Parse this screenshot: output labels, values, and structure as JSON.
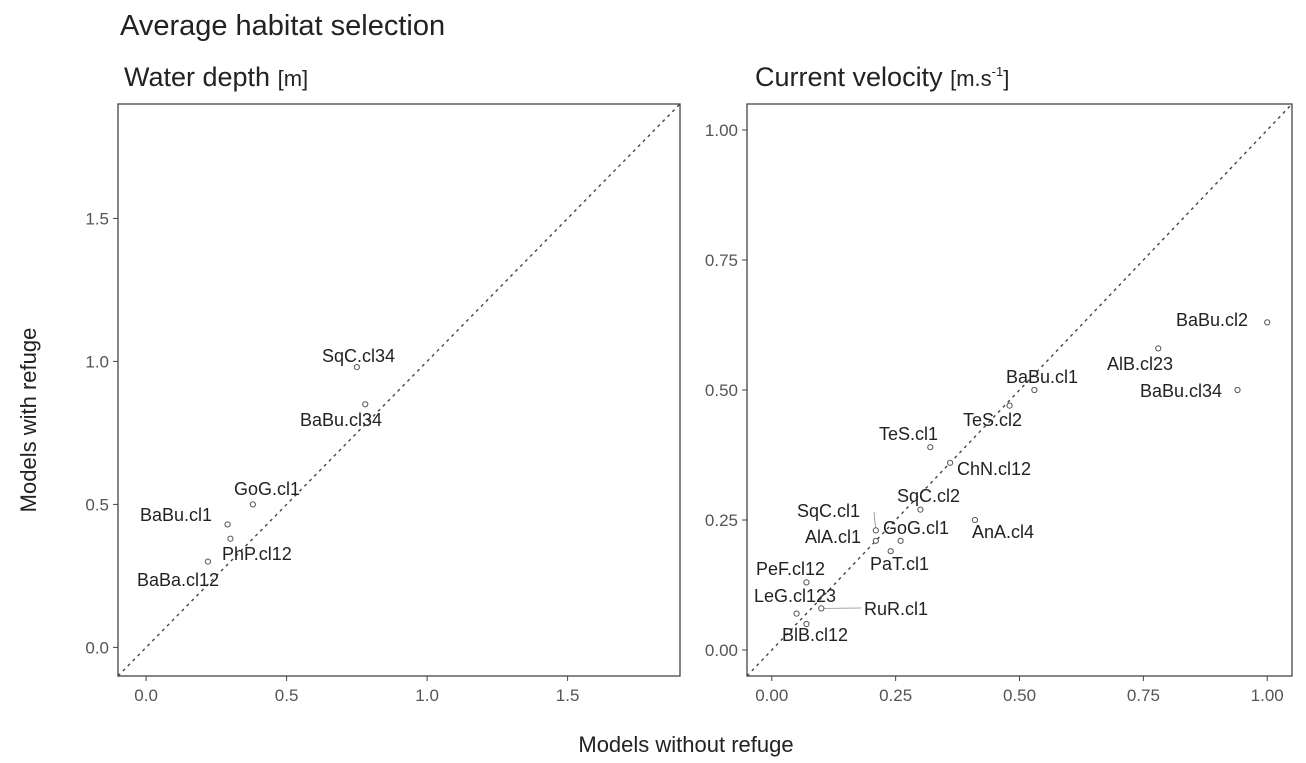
{
  "figure": {
    "title": "Average habitat selection",
    "xlabel": "Models without refuge",
    "ylabel": "Models with refuge"
  },
  "chart_data": [
    {
      "type": "scatter",
      "title": "Water depth",
      "unit": "[m]",
      "xlim": [
        -0.1,
        1.9
      ],
      "ylim": [
        -0.1,
        1.9
      ],
      "xticks": [
        "0.0",
        "0.5",
        "1.0",
        "1.5"
      ],
      "yticks": [
        "0.0",
        "0.5",
        "1.0",
        "1.5"
      ],
      "diagonal": true,
      "grid": false,
      "points": [
        {
          "label": "SqC.cl34",
          "x": 0.75,
          "y": 0.98
        },
        {
          "label": "BaBu.cl34",
          "x": 0.78,
          "y": 0.85
        },
        {
          "label": "GoG.cl1",
          "x": 0.38,
          "y": 0.5
        },
        {
          "label": "BaBu.cl1",
          "x": 0.29,
          "y": 0.43
        },
        {
          "label": "PhP.cl12",
          "x": 0.3,
          "y": 0.38
        },
        {
          "label": "BaBa.cl12",
          "x": 0.22,
          "y": 0.3
        }
      ]
    },
    {
      "type": "scatter",
      "title": "Current velocity",
      "unit_base": "[m.s",
      "unit_sup": "-1",
      "unit_end": "]",
      "xlim": [
        -0.05,
        1.05
      ],
      "ylim": [
        -0.05,
        1.05
      ],
      "xticks": [
        "0.00",
        "0.25",
        "0.50",
        "0.75",
        "1.00"
      ],
      "yticks": [
        "0.00",
        "0.25",
        "0.50",
        "0.75",
        "1.00"
      ],
      "diagonal": true,
      "grid": false,
      "points": [
        {
          "label": "BaBu.cl2",
          "x": 1.0,
          "y": 0.63
        },
        {
          "label": "AlB.cl23",
          "x": 0.78,
          "y": 0.58
        },
        {
          "label": "BaBu.cl34",
          "x": 0.94,
          "y": 0.5
        },
        {
          "label": "BaBu.cl1",
          "x": 0.53,
          "y": 0.5
        },
        {
          "label": "TeS.cl2",
          "x": 0.48,
          "y": 0.47
        },
        {
          "label": "TeS.cl1",
          "x": 0.32,
          "y": 0.39
        },
        {
          "label": "ChN.cl12",
          "x": 0.36,
          "y": 0.36
        },
        {
          "label": "SqC.cl2",
          "x": 0.3,
          "y": 0.27
        },
        {
          "label": "AnA.cl4",
          "x": 0.41,
          "y": 0.25
        },
        {
          "label": "SqC.cl1",
          "x": 0.21,
          "y": 0.23
        },
        {
          "label": "GoG.cl1",
          "x": 0.26,
          "y": 0.21
        },
        {
          "label": "AlA.cl1",
          "x": 0.21,
          "y": 0.21
        },
        {
          "label": "PaT.cl1",
          "x": 0.24,
          "y": 0.19
        },
        {
          "label": "PeF.cl12",
          "x": 0.07,
          "y": 0.13
        },
        {
          "label": "RuR.cl1",
          "x": 0.1,
          "y": 0.08
        },
        {
          "label": "LeG.cl123",
          "x": 0.05,
          "y": 0.07
        },
        {
          "label": "BlB.cl12",
          "x": 0.07,
          "y": 0.05
        }
      ]
    }
  ]
}
